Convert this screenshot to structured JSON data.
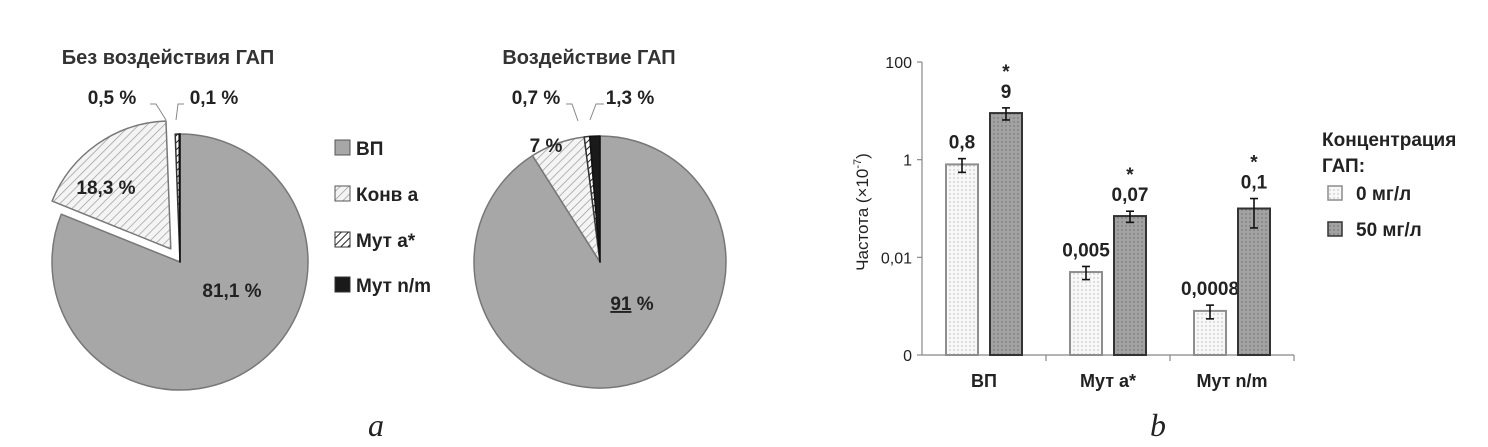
{
  "panels": {
    "a": "a",
    "b": "b"
  },
  "colors": {
    "vp": "#a7a7a7",
    "mut_nm": "#1a1a1a",
    "bar0_fill": "#f6f6f6",
    "bar50_fill": "#a0a0a0"
  },
  "legend_pie": {
    "items": [
      {
        "label": "ВП",
        "pattern": "solid-gray"
      },
      {
        "label": "Конв a",
        "pattern": "hatch-light"
      },
      {
        "label": "Мут a*",
        "pattern": "hatch-dark"
      },
      {
        "label": "Мут n/m",
        "pattern": "solid-black"
      }
    ]
  },
  "legend_bar": {
    "title": [
      "Концентрация",
      "ГАП:"
    ],
    "items": [
      {
        "label": "0 мг/л",
        "pattern": "dots-light"
      },
      {
        "label": "50 мг/л",
        "pattern": "dots-dark"
      }
    ]
  },
  "chart_data": [
    {
      "type": "pie",
      "title": "Без воздействия ГАП",
      "slices": [
        {
          "category": "ВП",
          "value": 81.1,
          "label": "81,1 %"
        },
        {
          "category": "Конв a",
          "value": 18.3,
          "label": "18,3 %",
          "exploded": true
        },
        {
          "category": "Мут a*",
          "value": 0.5,
          "label": "0,5 %"
        },
        {
          "category": "Мут n/m",
          "value": 0.1,
          "label": "0,1 %"
        }
      ]
    },
    {
      "type": "pie",
      "title": "Воздействие ГАП",
      "slices": [
        {
          "category": "ВП",
          "value": 91,
          "label": "91",
          "label_suffix": " %"
        },
        {
          "category": "Конв a",
          "value": 7,
          "label": "7 %"
        },
        {
          "category": "Мут a*",
          "value": 0.7,
          "label": "0,7 %"
        },
        {
          "category": "Мут n/m",
          "value": 1.3,
          "label": "1,3 %"
        }
      ]
    },
    {
      "type": "bar",
      "ylabel": "Частота (×10",
      "ylabel_sup": "-7",
      "ylabel_close": ")",
      "yscale": "log",
      "yticks": [
        {
          "value": 0.0001,
          "label": "0"
        },
        {
          "value": 0.01,
          "label": "0,01"
        },
        {
          "value": 1,
          "label": "1"
        },
        {
          "value": 100,
          "label": "100"
        }
      ],
      "ylim": [
        0.0001,
        100
      ],
      "categories": [
        "ВП",
        "Мут a*",
        "Мут n/m"
      ],
      "series": [
        {
          "name": "0 мг/л",
          "values": [
            0.8,
            0.005,
            0.0008
          ],
          "errors": [
            0.25,
            0.0015,
            0.00025
          ],
          "labels": [
            "0,8",
            "0,005",
            "0,0008"
          ],
          "stars": [
            "",
            "",
            ""
          ]
        },
        {
          "name": "50 мг/л",
          "values": [
            9,
            0.07,
            0.1
          ],
          "errors": [
            2.5,
            0.018,
            0.06
          ],
          "labels": [
            "9",
            "0,07",
            "0,1"
          ],
          "stars": [
            "*",
            "*",
            "*"
          ]
        }
      ]
    }
  ]
}
